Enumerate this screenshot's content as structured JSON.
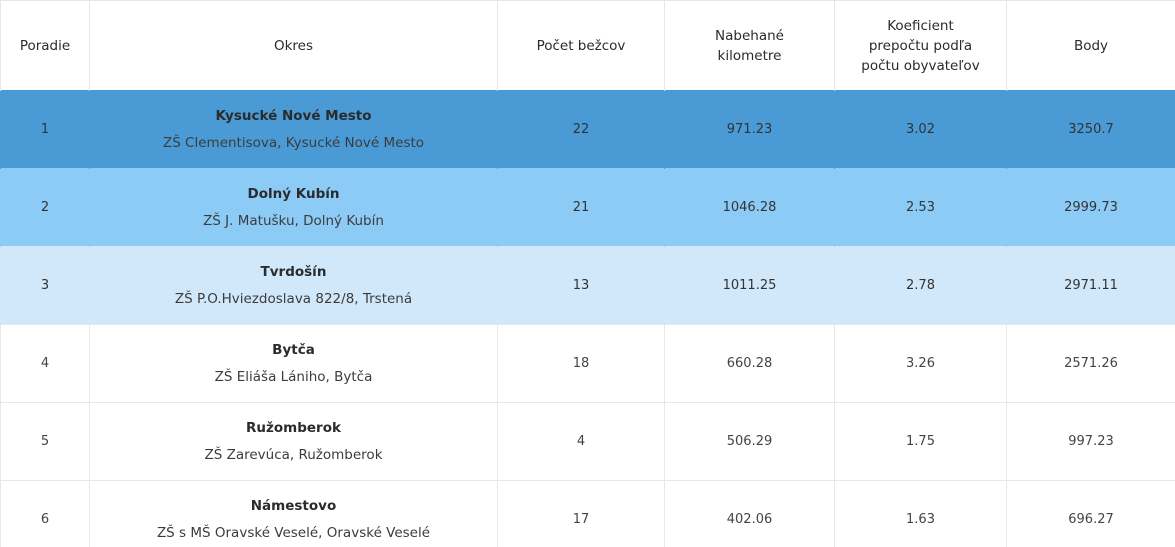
{
  "table": {
    "headers": {
      "rank": "Poradie",
      "district": "Okres",
      "runners": "Počet bežcov",
      "km_line1": "Nabehané",
      "km_line2": "kilometre",
      "coef_line1": "Koeficient",
      "coef_line2": "prepočtu podľa",
      "coef_line3": "počtu obyvateľov",
      "points": "Body"
    },
    "rows": [
      {
        "rank": "1",
        "district": "Kysucké Nové Mesto",
        "school": "ZŠ Clementisova, Kysucké Nové Mesto",
        "runners": "22",
        "km": "971.23",
        "coef": "3.02",
        "points": "3250.7",
        "highlight": "#4a9ad5"
      },
      {
        "rank": "2",
        "district": "Dolný Kubín",
        "school": "ZŠ J. Matušku, Dolný Kubín",
        "runners": "21",
        "km": "1046.28",
        "coef": "2.53",
        "points": "2999.73",
        "highlight": "#8dcbf7"
      },
      {
        "rank": "3",
        "district": "Tvrdošín",
        "school": "ZŠ P.O.Hviezdoslava 822/8, Trstená",
        "runners": "13",
        "km": "1011.25",
        "coef": "2.78",
        "points": "2971.11",
        "highlight": "#d1e8fa"
      },
      {
        "rank": "4",
        "district": "Bytča",
        "school": "ZŠ Eliáša Lániho, Bytča",
        "runners": "18",
        "km": "660.28",
        "coef": "3.26",
        "points": "2571.26"
      },
      {
        "rank": "5",
        "district": "Ružomberok",
        "school": "ZŠ Zarevúca, Ružomberok",
        "runners": "4",
        "km": "506.29",
        "coef": "1.75",
        "points": "997.23"
      },
      {
        "rank": "6",
        "district": "Námestovo",
        "school": "ZŠ s MŠ Oravské Veselé, Oravské Veselé",
        "runners": "17",
        "km": "402.06",
        "coef": "1.63",
        "points": "696.27"
      }
    ]
  }
}
